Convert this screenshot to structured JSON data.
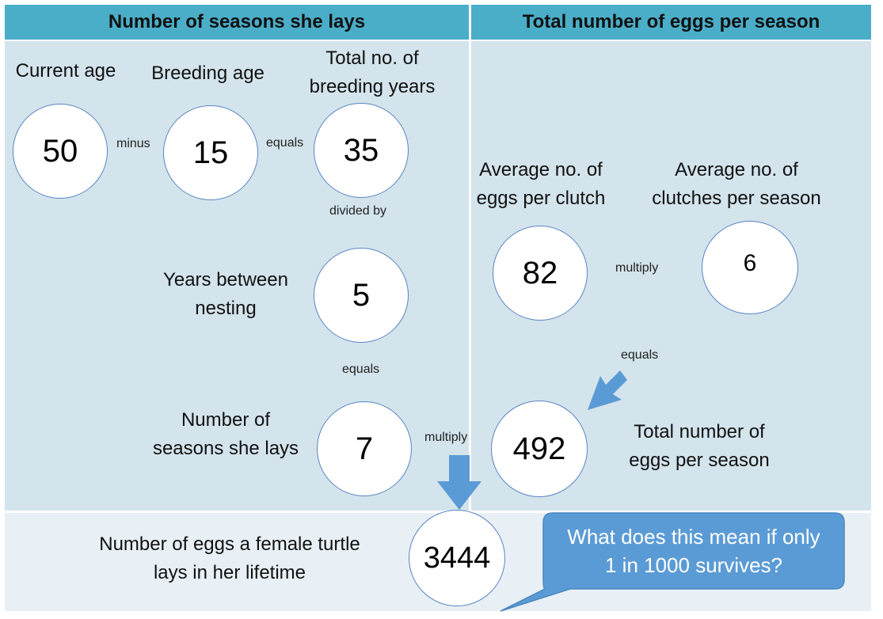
{
  "headers": {
    "left": "Number of seasons she lays",
    "right": "Total number of eggs per season"
  },
  "labels": {
    "current_age": "Current age",
    "breeding_age": "Breeding age",
    "total_breeding_years": [
      "Total no. of",
      "breeding years"
    ],
    "years_between": [
      "Years between",
      "nesting"
    ],
    "seasons": [
      "Number of",
      "seasons she lays"
    ],
    "avg_eggs": [
      "Average no. of",
      "eggs per clutch"
    ],
    "avg_clutches": [
      "Average no. of",
      "clutches per season"
    ],
    "total_eggs_season": [
      "Total number of",
      "eggs per season"
    ],
    "lifetime": [
      "Number of eggs a female turtle",
      "lays in her lifetime"
    ]
  },
  "values": {
    "current_age": "50",
    "breeding_age": "15",
    "total_breeding_years": "35",
    "years_between": "5",
    "seasons": "7",
    "avg_eggs": "82",
    "avg_clutches": "6",
    "total_eggs_season": "492",
    "lifetime": "3444"
  },
  "operators": {
    "minus": "minus",
    "equals_1": "equals",
    "divided_by": "divided by",
    "equals_2": "equals",
    "multiply_1": "multiply",
    "multiply_2": "multiply",
    "equals_3": "equals"
  },
  "callout": [
    "What does this mean if only",
    "1 in 1000 survives?"
  ],
  "colors": {
    "header": "#4aaec9",
    "panel": "#d3e4ec",
    "bottom_panel": "#e8f0f5",
    "arrow": "#5b9bd5",
    "callout": "#5b9bd5",
    "circle_border": "#5b84c4"
  }
}
